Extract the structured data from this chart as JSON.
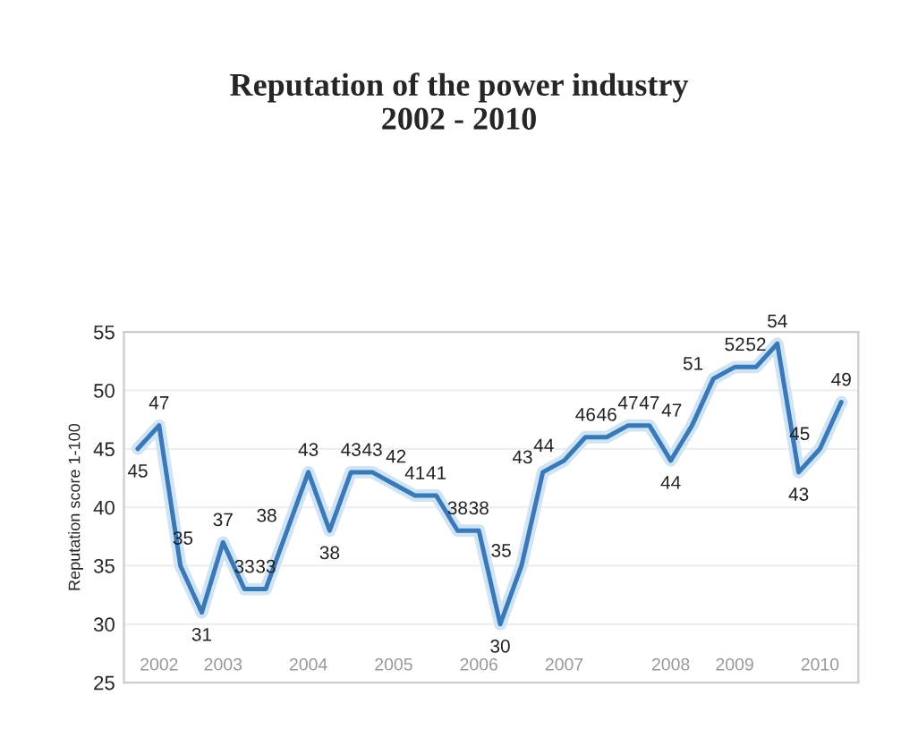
{
  "chart_data": {
    "type": "line",
    "title": "Reputation of the power industry\n2002 - 2010",
    "ylabel": "Reputation score 1-100",
    "categories": [
      null,
      "2002",
      null,
      null,
      "2003",
      null,
      null,
      null,
      "2004",
      null,
      null,
      null,
      "2005",
      null,
      null,
      null,
      "2006",
      null,
      null,
      null,
      "2007",
      null,
      null,
      null,
      null,
      "2008",
      null,
      null,
      "2009",
      null,
      null,
      null,
      "2010",
      null
    ],
    "series": [
      {
        "color": "#3a78b8",
        "values": [
          45,
          47,
          35,
          31,
          37,
          33,
          33,
          38,
          43,
          38,
          43,
          43,
          42,
          41,
          41,
          38,
          38,
          30,
          35,
          43,
          44,
          46,
          46,
          47,
          47,
          44,
          47,
          51,
          52,
          52,
          54,
          43,
          45,
          49
        ]
      }
    ],
    "data_labels": true,
    "ylim": [
      25,
      55
    ],
    "yticks": [
      25,
      30,
      35,
      40,
      45,
      50,
      55
    ],
    "grid": "y",
    "marker": "none",
    "line_style": "solid"
  }
}
